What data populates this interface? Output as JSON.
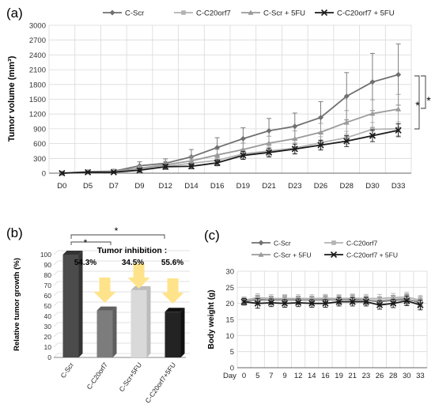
{
  "panels": {
    "a": "(a)",
    "b": "(b)",
    "c": "(c)"
  },
  "colors": {
    "C-Scr": "#707070",
    "C-C20orf7": "#b3b3b3",
    "C-Scr + 5FU": "#9a9a9a",
    "C-C20orf7 + 5FU": "#1a1a1a",
    "grid": "#d9d9d9",
    "arrow": "#ffe38a"
  },
  "chart_data": [
    {
      "type": "line",
      "panel": "a",
      "ylabel": "Tumor volume (mm³)",
      "xlabel": "",
      "x": [
        "D0",
        "D5",
        "D7",
        "D9",
        "D12",
        "D14",
        "D16",
        "D19",
        "D21",
        "D23",
        "D26",
        "D28",
        "D30",
        "D33"
      ],
      "ylim": [
        0,
        3000
      ],
      "yticks": [
        0,
        300,
        600,
        900,
        1200,
        1500,
        1800,
        2100,
        2400,
        2700,
        3000
      ],
      "legend_position": "top",
      "grid": true,
      "series": [
        {
          "name": "C-Scr",
          "marker": "diamond",
          "values": [
            0,
            30,
            40,
            150,
            200,
            330,
            520,
            700,
            860,
            950,
            1130,
            1560,
            1850,
            2000
          ],
          "err": [
            20,
            30,
            40,
            80,
            90,
            150,
            200,
            220,
            250,
            270,
            320,
            480,
            580,
            620
          ]
        },
        {
          "name": "C-C20orf7",
          "marker": "square",
          "values": [
            0,
            25,
            30,
            70,
            140,
            200,
            260,
            390,
            450,
            510,
            620,
            720,
            890,
            900
          ],
          "err": [
            20,
            30,
            30,
            60,
            60,
            80,
            90,
            100,
            100,
            110,
            120,
            130,
            140,
            140
          ]
        },
        {
          "name": "C-Scr + 5FU",
          "marker": "triangle",
          "values": [
            0,
            20,
            40,
            100,
            170,
            250,
            370,
            480,
            610,
            700,
            830,
            1030,
            1210,
            1300
          ],
          "err": [
            20,
            30,
            40,
            60,
            70,
            90,
            110,
            130,
            140,
            160,
            180,
            240,
            280,
            300
          ]
        },
        {
          "name": "C-C20orf7 + 5FU",
          "marker": "cross",
          "values": [
            0,
            20,
            20,
            60,
            130,
            140,
            210,
            360,
            420,
            490,
            570,
            650,
            760,
            870
          ],
          "err": [
            20,
            20,
            20,
            40,
            50,
            50,
            60,
            80,
            90,
            100,
            100,
            110,
            120,
            130
          ]
        }
      ],
      "annotations": [
        "*",
        "*"
      ]
    },
    {
      "type": "bar",
      "panel": "b",
      "ylabel": "Relative tumor growth (%)",
      "categories": [
        "C-Scr",
        "C-C20orf7",
        "C-Scr+5FU",
        "C-C20orf7+5FU"
      ],
      "values": [
        100,
        45.7,
        65.5,
        44.4
      ],
      "ylim": [
        0,
        100
      ],
      "yticks": [
        0,
        10,
        20,
        30,
        40,
        50,
        60,
        70,
        80,
        90,
        100
      ],
      "grid": true,
      "inhibition_title": "Tumor inhibition :",
      "inhibition_values": [
        "54.3%",
        "34.5%",
        "55.6%"
      ],
      "annotations": [
        "*",
        "*"
      ]
    },
    {
      "type": "line",
      "panel": "c",
      "ylabel": "Body weight (g)",
      "xlabel": "",
      "x_title": "Day",
      "x": [
        "0",
        "5",
        "7",
        "9",
        "12",
        "14",
        "16",
        "19",
        "21",
        "23",
        "26",
        "28",
        "30",
        "33"
      ],
      "ylim": [
        0,
        30
      ],
      "yticks": [
        0,
        5,
        10,
        15,
        20,
        25,
        30
      ],
      "legend_position": "top",
      "grid": true,
      "series": [
        {
          "name": "C-Scr",
          "marker": "diamond",
          "values": [
            20.5,
            21.3,
            21.0,
            21.2,
            21.0,
            21.0,
            21.2,
            21.0,
            21.3,
            21.0,
            20.5,
            21.0,
            21.2,
            20.5
          ],
          "err": [
            1,
            1.2,
            1.2,
            1.2,
            1.2,
            1.2,
            1.2,
            1.3,
            1.3,
            1.3,
            1.3,
            1.3,
            1.5,
            1.5
          ]
        },
        {
          "name": "C-C20orf7",
          "marker": "square",
          "values": [
            21.0,
            21.8,
            21.5,
            21.5,
            21.5,
            21.5,
            21.6,
            21.5,
            21.6,
            21.5,
            21.5,
            21.8,
            22.0,
            21.0
          ],
          "err": [
            1,
            1.2,
            1.2,
            1.2,
            1.2,
            1.2,
            1.2,
            1.2,
            1.3,
            1.3,
            1.3,
            1.3,
            1.5,
            1.5
          ]
        },
        {
          "name": "C-Scr + 5FU",
          "marker": "triangle",
          "values": [
            20.8,
            21.0,
            21.0,
            21.0,
            21.0,
            21.0,
            21.0,
            21.2,
            21.0,
            21.0,
            20.8,
            21.2,
            21.5,
            20.0
          ],
          "err": [
            1,
            1,
            1,
            1,
            1,
            1,
            1,
            1.2,
            1.2,
            1.2,
            1.2,
            1.3,
            1.5,
            1.5
          ]
        },
        {
          "name": "C-C20orf7 + 5FU",
          "marker": "cross",
          "values": [
            20.5,
            20.0,
            20.2,
            20.0,
            20.2,
            20.0,
            20.0,
            20.5,
            20.5,
            20.5,
            19.5,
            20.0,
            20.8,
            19.5
          ],
          "err": [
            1,
            1.5,
            1.2,
            1.2,
            1.2,
            1.2,
            1.2,
            1.3,
            1.3,
            1.3,
            1.3,
            1.3,
            1.5,
            1.5
          ]
        }
      ]
    }
  ]
}
